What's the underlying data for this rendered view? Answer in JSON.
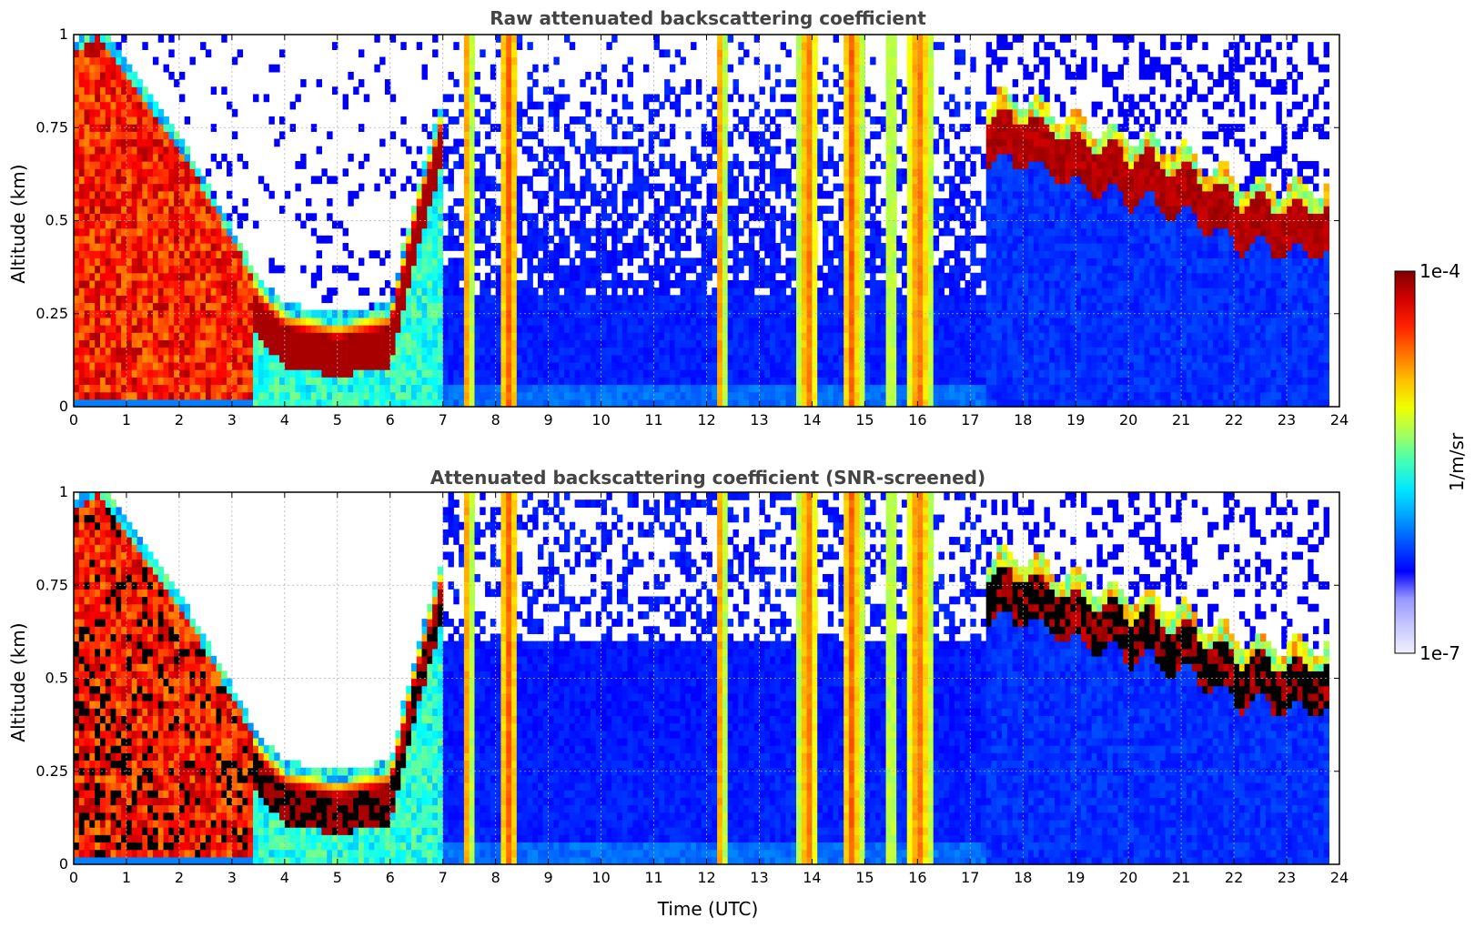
{
  "chart_data": [
    {
      "type": "heatmap",
      "title": "Raw attenuated backscattering coefficient",
      "xlabel": "",
      "ylabel": "Altitude (km)",
      "xlim": [
        0,
        24
      ],
      "ylim": [
        0,
        1
      ],
      "xticks": [
        "0",
        "1",
        "2",
        "3",
        "4",
        "5",
        "6",
        "7",
        "8",
        "9",
        "10",
        "11",
        "12",
        "13",
        "14",
        "15",
        "16",
        "17",
        "18",
        "19",
        "20",
        "21",
        "22",
        "23",
        "24"
      ],
      "yticks": [
        "0",
        "0.25",
        "0.5",
        "0.75",
        "1"
      ],
      "grid": true,
      "colorscale": "jet",
      "clim": [
        "1e-7",
        "1e-4"
      ],
      "clabel": "1/m/sr",
      "data_end_hour": 23.8,
      "features": {
        "boundary_layer_top_km": [
          [
            0,
            0.95
          ],
          [
            0.5,
            1.0
          ],
          [
            1,
            0.9
          ],
          [
            2,
            0.7
          ],
          [
            3,
            0.45
          ],
          [
            3.5,
            0.32
          ],
          [
            4,
            0.25
          ],
          [
            5,
            0.22
          ],
          [
            6,
            0.25
          ],
          [
            6.5,
            0.55
          ],
          [
            7,
            0.8
          ]
        ],
        "cloud_layer_km": [
          [
            17.3,
            0.72
          ],
          [
            18,
            0.72
          ],
          [
            19,
            0.66
          ],
          [
            20,
            0.62
          ],
          [
            21,
            0.58
          ],
          [
            22,
            0.5
          ],
          [
            23,
            0.48
          ],
          [
            23.8,
            0.48
          ]
        ],
        "precipitation_columns_h": [
          [
            7.4,
            7.55
          ],
          [
            8.05,
            8.45
          ],
          [
            12.2,
            12.35
          ],
          [
            13.75,
            14.1
          ],
          [
            14.55,
            14.95
          ],
          [
            15.45,
            15.55
          ],
          [
            15.8,
            16.25
          ]
        ]
      }
    },
    {
      "type": "heatmap",
      "title": "Attenuated backscattering coefficient (SNR-screened)",
      "xlabel": "Time (UTC)",
      "ylabel": "Altitude (km)",
      "xlim": [
        0,
        24
      ],
      "ylim": [
        0,
        1
      ],
      "xticks": [
        "0",
        "1",
        "2",
        "3",
        "4",
        "5",
        "6",
        "7",
        "8",
        "9",
        "10",
        "11",
        "12",
        "13",
        "14",
        "15",
        "16",
        "17",
        "18",
        "19",
        "20",
        "21",
        "22",
        "23",
        "24"
      ],
      "yticks": [
        "0",
        "0.25",
        "0.5",
        "0.75",
        "1"
      ],
      "grid": true,
      "colorscale": "jet",
      "clim": [
        "1e-7",
        "1e-4"
      ],
      "clabel": "1/m/sr",
      "data_end_hour": 23.8
    }
  ],
  "colorbar": {
    "top_label": "1e-4",
    "bottom_label": "1e-7",
    "units": "1/m/sr",
    "colors": [
      "#f0f0ff",
      "#c8c8ff",
      "#9696ff",
      "#0000ff",
      "#0050ff",
      "#00a0ff",
      "#00e8ff",
      "#40ffb8",
      "#a0ff60",
      "#f0ff00",
      "#ffc000",
      "#ff7000",
      "#ff2000",
      "#d00000",
      "#800000"
    ]
  }
}
